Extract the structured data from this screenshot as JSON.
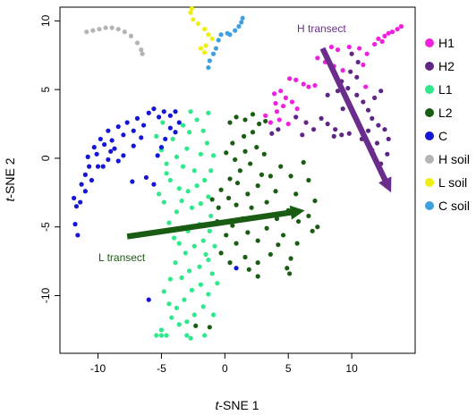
{
  "chart_data": {
    "type": "scatter",
    "xlabel_italic": "t",
    "xlabel_rest": "-SNE 1",
    "ylabel_italic": "t",
    "ylabel_rest": "-SNE 2",
    "xlim": [
      -13,
      15
    ],
    "ylim": [
      -14.2,
      11
    ],
    "xticks": [
      -10,
      -5,
      0,
      5,
      10
    ],
    "yticks": [
      -10,
      -5,
      0,
      5,
      10
    ],
    "grid": false,
    "legend_position": "right",
    "series": [
      {
        "name": "H1",
        "color": "#ee22dd",
        "points": [
          [
            8.4,
            8.1
          ],
          [
            8.9,
            7.9
          ],
          [
            9.8,
            8.1
          ],
          [
            10.6,
            8.0
          ],
          [
            11.2,
            7.6
          ],
          [
            11.8,
            8.3
          ],
          [
            12.1,
            8.7
          ],
          [
            12.6,
            8.9
          ],
          [
            12.9,
            9.1
          ],
          [
            13.2,
            9.2
          ],
          [
            13.6,
            9.4
          ],
          [
            13.9,
            9.6
          ],
          [
            12.4,
            8.5
          ],
          [
            7.3,
            7.3
          ],
          [
            7.9,
            7.0
          ],
          [
            8.6,
            6.7
          ],
          [
            9.3,
            6.4
          ],
          [
            5.1,
            5.8
          ],
          [
            5.6,
            5.7
          ],
          [
            6.2,
            5.4
          ],
          [
            6.6,
            5.2
          ],
          [
            7.1,
            5.3
          ],
          [
            3.9,
            4.7
          ],
          [
            4.4,
            4.9
          ],
          [
            4.8,
            4.4
          ],
          [
            4.0,
            4.0
          ],
          [
            4.6,
            3.8
          ],
          [
            5.3,
            4.1
          ],
          [
            5.7,
            3.6
          ],
          [
            4.1,
            3.4
          ],
          [
            3.2,
            3.1
          ],
          [
            3.6,
            2.6
          ],
          [
            4.3,
            2.8
          ],
          [
            5.0,
            2.5
          ],
          [
            10.9,
            6.8
          ],
          [
            11.1,
            5.2
          ]
        ]
      },
      {
        "name": "H2",
        "color": "#5e2585",
        "points": [
          [
            10.0,
            7.6
          ],
          [
            10.5,
            7.0
          ],
          [
            9.9,
            6.3
          ],
          [
            10.4,
            5.9
          ],
          [
            9.2,
            5.6
          ],
          [
            9.7,
            5.1
          ],
          [
            10.4,
            4.6
          ],
          [
            9.6,
            4.2
          ],
          [
            10.9,
            4.1
          ],
          [
            9.3,
            3.6
          ],
          [
            10.1,
            3.3
          ],
          [
            11.3,
            3.5
          ],
          [
            11.8,
            4.4
          ],
          [
            12.3,
            4.9
          ],
          [
            11.6,
            2.9
          ],
          [
            12.1,
            2.4
          ],
          [
            11.3,
            2.0
          ],
          [
            12.6,
            2.1
          ],
          [
            12.9,
            1.4
          ],
          [
            12.0,
            1.1
          ],
          [
            12.8,
            0.3
          ],
          [
            11.6,
            0.6
          ],
          [
            12.3,
            -0.4
          ],
          [
            10.8,
            1.4
          ],
          [
            8.7,
            2.1
          ],
          [
            8.1,
            2.5
          ],
          [
            8.6,
            1.6
          ],
          [
            9.2,
            1.7
          ],
          [
            9.8,
            1.8
          ],
          [
            7.6,
            2.9
          ],
          [
            7.0,
            2.1
          ],
          [
            6.4,
            2.6
          ],
          [
            5.6,
            3.0
          ],
          [
            6.1,
            1.7
          ],
          [
            4.2,
            2.1
          ],
          [
            3.7,
            1.8
          ],
          [
            8.1,
            4.6
          ],
          [
            8.9,
            4.9
          ]
        ]
      },
      {
        "name": "L1",
        "color": "#2ee88b",
        "points": [
          [
            -5.0,
            0.6
          ],
          [
            -5.4,
            1.6
          ],
          [
            -4.9,
            2.6
          ],
          [
            -4.6,
            -0.4
          ],
          [
            -4.3,
            -1.6
          ],
          [
            -4.8,
            -3.2
          ],
          [
            -5.2,
            -2.6
          ],
          [
            -4.4,
            -4.7
          ],
          [
            -4.0,
            -5.8
          ],
          [
            -3.8,
            -3.9
          ],
          [
            -3.6,
            -2.2
          ],
          [
            -3.3,
            -0.6
          ],
          [
            -3.0,
            0.7
          ],
          [
            -3.3,
            2.4
          ],
          [
            -2.7,
            3.4
          ],
          [
            -2.2,
            2.8
          ],
          [
            -1.7,
            2.0
          ],
          [
            -1.3,
            3.3
          ],
          [
            -1.4,
            1.1
          ],
          [
            -1.9,
            0.3
          ],
          [
            -2.4,
            -0.9
          ],
          [
            -1.6,
            -1.6
          ],
          [
            -2.9,
            -2.4
          ],
          [
            -3.4,
            -3.1
          ],
          [
            -2.6,
            -3.6
          ],
          [
            -1.9,
            -3.3
          ],
          [
            -1.3,
            -2.8
          ],
          [
            -1.1,
            -4.2
          ],
          [
            -2.0,
            -4.8
          ],
          [
            -2.9,
            -5.3
          ],
          [
            -3.6,
            -6.2
          ],
          [
            -3.1,
            -6.9
          ],
          [
            -2.4,
            -6.4
          ],
          [
            -1.7,
            -6.0
          ],
          [
            -1.2,
            -5.3
          ],
          [
            -0.8,
            -6.4
          ],
          [
            -1.3,
            -7.4
          ],
          [
            -2.0,
            -7.9
          ],
          [
            -2.8,
            -8.2
          ],
          [
            -3.4,
            -8.7
          ],
          [
            -3.9,
            -7.6
          ],
          [
            -4.3,
            -8.8
          ],
          [
            -4.8,
            -9.7
          ],
          [
            -4.4,
            -10.6
          ],
          [
            -3.8,
            -10.9
          ],
          [
            -3.2,
            -10.3
          ],
          [
            -2.6,
            -9.6
          ],
          [
            -1.9,
            -9.2
          ],
          [
            -1.3,
            -9.9
          ],
          [
            -1.7,
            -10.8
          ],
          [
            -2.4,
            -11.4
          ],
          [
            -3.0,
            -11.9
          ],
          [
            -3.6,
            -12.1
          ],
          [
            -4.2,
            -11.6
          ],
          [
            -5.0,
            -12.5
          ],
          [
            -5.4,
            -12.9
          ],
          [
            -5.0,
            -12.9
          ],
          [
            -4.6,
            -12.9
          ],
          [
            -3.0,
            -12.9
          ],
          [
            -2.7,
            -13.1
          ],
          [
            -1.6,
            -12.9
          ],
          [
            -0.9,
            -11.4
          ],
          [
            -0.6,
            -9.1
          ],
          [
            -1.0,
            -8.4
          ],
          [
            -1.5,
            -7.0
          ],
          [
            -2.2,
            -2.0
          ],
          [
            -2.8,
            1.9
          ],
          [
            -3.8,
            0.1
          ],
          [
            -4.1,
            1.4
          ],
          [
            -4.6,
            -1.1
          ],
          [
            -0.9,
            0.2
          ],
          [
            -1.1,
            -0.9
          ]
        ]
      },
      {
        "name": "L2",
        "color": "#1a5c14",
        "points": [
          [
            0.4,
            2.6
          ],
          [
            0.9,
            3.0
          ],
          [
            1.6,
            2.8
          ],
          [
            2.2,
            3.2
          ],
          [
            2.7,
            2.5
          ],
          [
            3.2,
            2.7
          ],
          [
            2.2,
            1.9
          ],
          [
            1.5,
            1.6
          ],
          [
            0.6,
            1.1
          ],
          [
            0.1,
            0.4
          ],
          [
            0.8,
            -0.1
          ],
          [
            1.6,
            0.5
          ],
          [
            2.5,
            0.8
          ],
          [
            3.1,
            0.3
          ],
          [
            2.0,
            -0.4
          ],
          [
            1.2,
            -0.9
          ],
          [
            0.4,
            -1.5
          ],
          [
            -0.3,
            -2.3
          ],
          [
            0.3,
            -2.9
          ],
          [
            -0.5,
            -3.6
          ],
          [
            0.9,
            -3.4
          ],
          [
            1.8,
            -2.6
          ],
          [
            2.6,
            -2.0
          ],
          [
            3.6,
            -1.3
          ],
          [
            4.4,
            -0.6
          ],
          [
            5.2,
            -1.3
          ],
          [
            4.0,
            -2.4
          ],
          [
            3.3,
            -3.2
          ],
          [
            2.1,
            -3.6
          ],
          [
            1.4,
            -4.4
          ],
          [
            0.6,
            -4.9
          ],
          [
            1.8,
            -5.4
          ],
          [
            2.6,
            -6.0
          ],
          [
            3.3,
            -5.1
          ],
          [
            4.1,
            -4.4
          ],
          [
            5.0,
            -3.8
          ],
          [
            5.6,
            -2.6
          ],
          [
            5.8,
            -4.6
          ],
          [
            4.6,
            -5.6
          ],
          [
            4.2,
            -6.3
          ],
          [
            3.6,
            -7.0
          ],
          [
            2.6,
            -7.6
          ],
          [
            1.6,
            -7.2
          ],
          [
            0.9,
            -6.2
          ],
          [
            0.1,
            -5.6
          ],
          [
            -0.6,
            -4.6
          ],
          [
            -1.0,
            -3.0
          ],
          [
            6.2,
            -0.3
          ],
          [
            6.6,
            -1.6
          ],
          [
            7.1,
            -3.1
          ],
          [
            6.6,
            -4.2
          ],
          [
            6.9,
            -5.3
          ],
          [
            7.3,
            -5.0
          ],
          [
            5.7,
            -6.2
          ],
          [
            5.2,
            -7.3
          ],
          [
            4.9,
            -8.0
          ],
          [
            5.1,
            -8.4
          ],
          [
            2.6,
            -8.6
          ],
          [
            1.9,
            -8.1
          ],
          [
            0.4,
            -7.6
          ],
          [
            -0.3,
            -6.9
          ],
          [
            -1.2,
            -12.3
          ],
          [
            -2.3,
            -12.2
          ],
          [
            1.0,
            -1.8
          ],
          [
            2.9,
            -1.2
          ]
        ]
      },
      {
        "name": "C",
        "color": "#1515d6",
        "points": [
          [
            -11.9,
            -2.9
          ],
          [
            -11.7,
            -3.5
          ],
          [
            -11.4,
            -3.2
          ],
          [
            -11.8,
            -4.8
          ],
          [
            -11.6,
            -5.6
          ],
          [
            -11.3,
            -1.9
          ],
          [
            -11.0,
            -1.2
          ],
          [
            -10.7,
            -0.6
          ],
          [
            -10.8,
            0.1
          ],
          [
            -10.3,
            0.8
          ],
          [
            -10.0,
            -0.6
          ],
          [
            -9.8,
            1.4
          ],
          [
            -9.5,
            1.0
          ],
          [
            -9.2,
            2.0
          ],
          [
            -8.9,
            1.3
          ],
          [
            -8.4,
            2.3
          ],
          [
            -8.0,
            1.7
          ],
          [
            -7.7,
            2.6
          ],
          [
            -7.2,
            2.0
          ],
          [
            -6.9,
            2.9
          ],
          [
            -6.4,
            2.4
          ],
          [
            -6.0,
            3.3
          ],
          [
            -5.6,
            3.6
          ],
          [
            -5.2,
            3.0
          ],
          [
            -4.8,
            3.4
          ],
          [
            -4.3,
            3.1
          ],
          [
            -3.9,
            3.4
          ],
          [
            -3.6,
            2.6
          ],
          [
            -3.9,
            1.9
          ],
          [
            -4.3,
            2.2
          ],
          [
            -4.7,
            1.4
          ],
          [
            -5.0,
            0.8
          ],
          [
            -5.3,
            0.2
          ],
          [
            -8.7,
            0.7
          ],
          [
            -9.2,
            -0.1
          ],
          [
            -9.6,
            -0.6
          ],
          [
            -10.1,
            0.3
          ],
          [
            -10.5,
            -1.6
          ],
          [
            -11.0,
            -2.4
          ],
          [
            -8.0,
            0.2
          ],
          [
            -7.2,
            0.9
          ],
          [
            -6.6,
            1.5
          ],
          [
            -6.2,
            -1.4
          ],
          [
            -5.6,
            -1.9
          ],
          [
            -7.3,
            -1.7
          ],
          [
            -6.0,
            -10.3
          ],
          [
            0.9,
            -8.0
          ],
          [
            -8.4,
            -0.2
          ],
          [
            -9.0,
            0.5
          ]
        ]
      },
      {
        "name": "H soil",
        "color": "#b4b4b4",
        "points": [
          [
            -10.9,
            9.2
          ],
          [
            -10.4,
            9.3
          ],
          [
            -9.9,
            9.4
          ],
          [
            -9.4,
            9.5
          ],
          [
            -8.9,
            9.5
          ],
          [
            -8.4,
            9.4
          ],
          [
            -7.9,
            9.2
          ],
          [
            -7.4,
            8.9
          ],
          [
            -6.9,
            8.4
          ],
          [
            -6.6,
            7.9
          ],
          [
            -6.5,
            7.6
          ]
        ]
      },
      {
        "name": "L soil",
        "color": "#eeee10",
        "points": [
          [
            -2.7,
            10.6
          ],
          [
            -2.5,
            10.1
          ],
          [
            -2.1,
            9.8
          ],
          [
            -1.6,
            9.4
          ],
          [
            -1.3,
            9.0
          ],
          [
            -1.0,
            8.7
          ],
          [
            -1.5,
            8.2
          ],
          [
            -1.9,
            8.0
          ],
          [
            -1.6,
            7.7
          ],
          [
            -2.6,
            10.9
          ]
        ]
      },
      {
        "name": "C soil",
        "color": "#3fa0e0",
        "points": [
          [
            1.4,
            10.2
          ],
          [
            1.3,
            9.9
          ],
          [
            1.1,
            9.6
          ],
          [
            0.8,
            9.3
          ],
          [
            0.2,
            9.1
          ],
          [
            -0.3,
            9.0
          ],
          [
            -0.5,
            8.6
          ],
          [
            -0.7,
            8.0
          ],
          [
            -0.9,
            7.6
          ],
          [
            -1.2,
            7.1
          ],
          [
            -1.3,
            6.6
          ],
          [
            0.4,
            9.0
          ]
        ]
      }
    ],
    "annotations": {
      "h_transect": {
        "label": "H transect",
        "color": "#6b2d8c",
        "from": [
          7.7,
          8.0
        ],
        "to": [
          13.1,
          -2.5
        ]
      },
      "l_transect": {
        "label": "L transect",
        "color": "#1a5c14",
        "from": [
          -7.7,
          -5.7
        ],
        "to": [
          6.3,
          -3.8
        ]
      }
    }
  }
}
